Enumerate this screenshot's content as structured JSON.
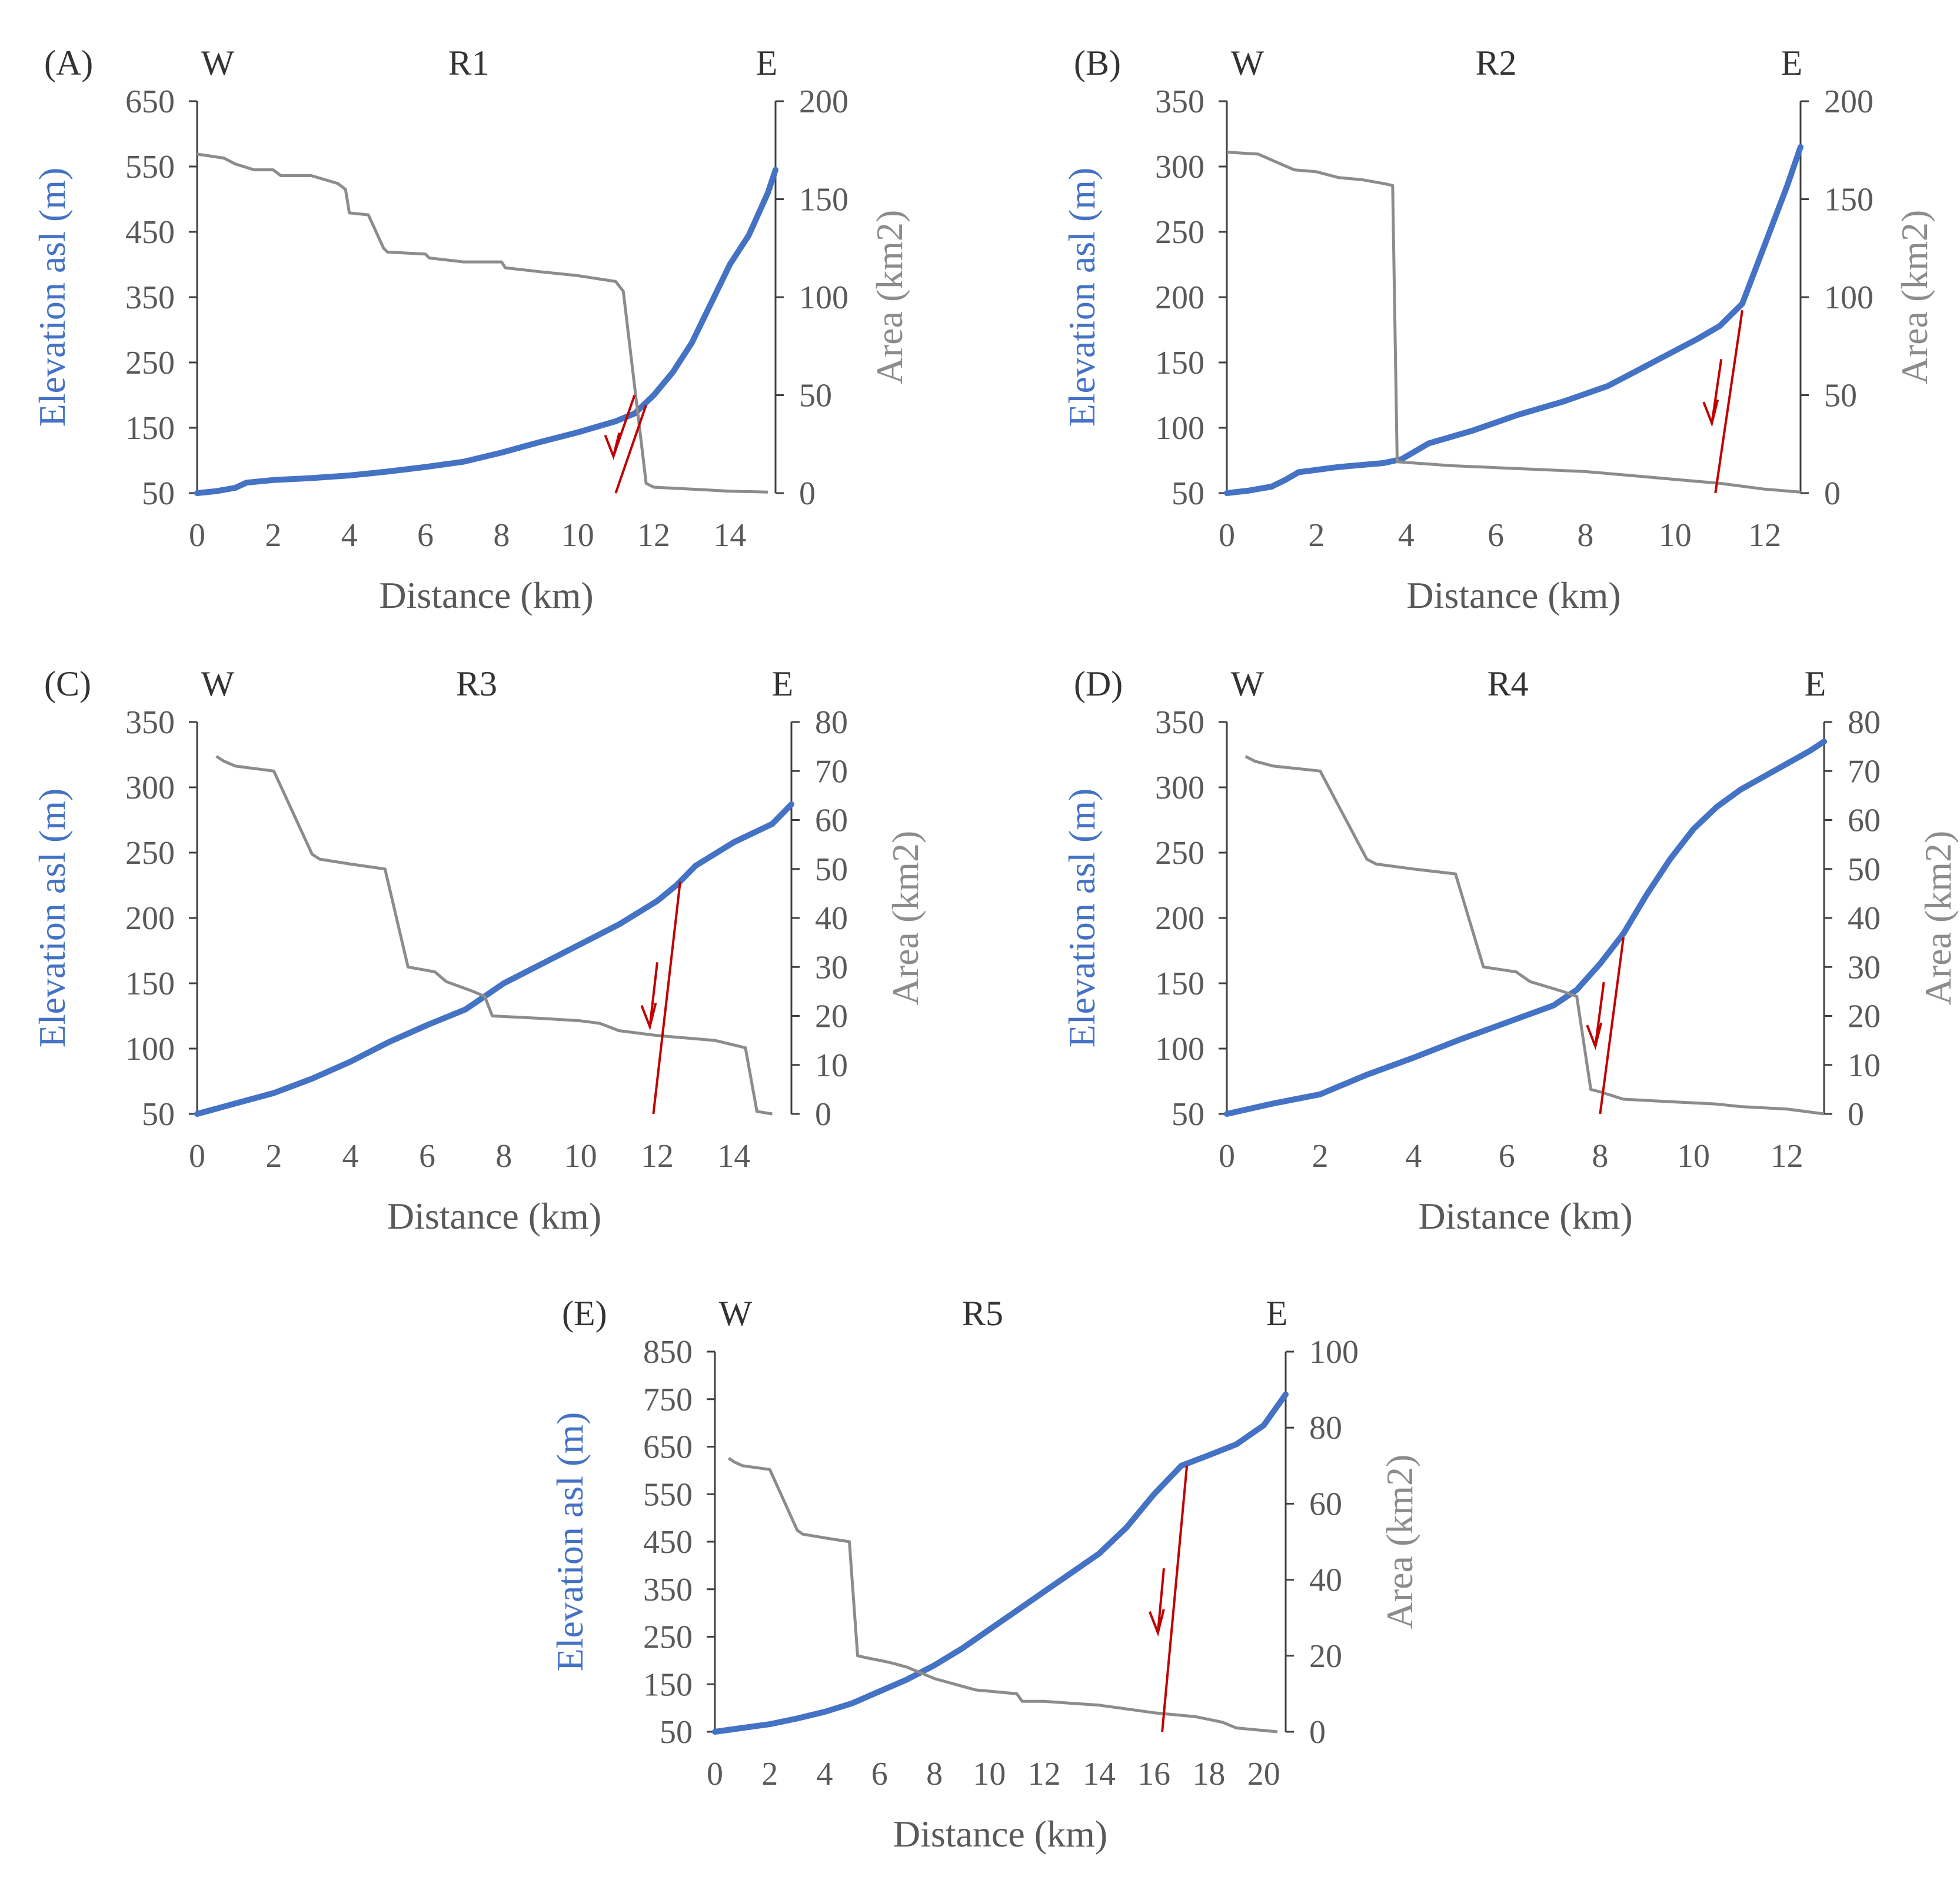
{
  "colors": {
    "elevation": "#4472C4",
    "area": "#8C8C8C",
    "fault": "#C00000",
    "axis": "#404040",
    "text": "#333333",
    "tick_text": "#595959"
  },
  "chart_data": [
    {
      "type": "line",
      "panel": "(A)",
      "title": "R1",
      "west_label": "W",
      "east_label": "E",
      "xlabel": "Distance (km)",
      "ylabel": "Elevation asl (m)",
      "y2label": "Area (km2)",
      "xlim": [
        0,
        15.2
      ],
      "ylim": [
        50,
        650
      ],
      "y2lim": [
        0,
        200
      ],
      "xticks": [
        0,
        2,
        4,
        6,
        8,
        10,
        12,
        14
      ],
      "yticks": [
        50,
        150,
        250,
        350,
        450,
        550,
        650
      ],
      "y2ticks": [
        0,
        50,
        100,
        150,
        200
      ],
      "series": [
        {
          "name": "Elevation asl (m)",
          "axis": "left",
          "x": [
            0,
            0.5,
            1.0,
            1.3,
            2,
            3,
            4,
            5,
            6,
            7,
            8,
            9,
            10,
            11,
            11.5,
            12,
            12.5,
            13,
            13.5,
            14,
            14.5,
            15,
            15.2
          ],
          "y": [
            50,
            53,
            58,
            66,
            70,
            73,
            77,
            83,
            90,
            98,
            112,
            128,
            143,
            160,
            172,
            200,
            235,
            280,
            340,
            400,
            445,
            510,
            545
          ]
        },
        {
          "name": "Area (km2)",
          "axis": "right",
          "x": [
            0,
            0.7,
            1.0,
            1.5,
            2.0,
            2.2,
            3.0,
            3.7,
            3.9,
            4.0,
            4.5,
            4.9,
            5.0,
            6.0,
            6.1,
            7.0,
            8.0,
            8.1,
            9.0,
            10.0,
            11.0,
            11.2,
            11.8,
            12.0,
            13.0,
            14.0,
            15.0
          ],
          "y": [
            173,
            171,
            168,
            165,
            165,
            162,
            162,
            158,
            155,
            143,
            142,
            125,
            123,
            122,
            120,
            118,
            118,
            115,
            113,
            111,
            108,
            103,
            5,
            3,
            2,
            1,
            0.5
          ]
        }
      ],
      "fault": {
        "x_start": 11.0,
        "x_end": 11.8,
        "elev_at_top": 185
      }
    },
    {
      "type": "line",
      "panel": "(B)",
      "title": "R2",
      "west_label": "W",
      "east_label": "E",
      "xlabel": "Distance (km)",
      "ylabel": "Elevation asl (m)",
      "y2label": "Area (km2)",
      "xlim": [
        0,
        12.8
      ],
      "ylim": [
        50,
        350
      ],
      "y2lim": [
        0,
        200
      ],
      "xticks": [
        0,
        2,
        4,
        6,
        8,
        10,
        12
      ],
      "yticks": [
        50,
        100,
        150,
        200,
        250,
        300,
        350
      ],
      "y2ticks": [
        0,
        50,
        100,
        150,
        200
      ],
      "series": [
        {
          "name": "Elevation asl (m)",
          "axis": "left",
          "x": [
            0,
            0.5,
            1.0,
            1.3,
            1.6,
            2.5,
            3.5,
            3.9,
            4.5,
            5.5,
            6.5,
            7.5,
            8.5,
            9.5,
            10.5,
            11.0,
            11.5,
            12.0,
            12.5,
            12.8
          ],
          "y": [
            50,
            52,
            55,
            60,
            66,
            70,
            73,
            76,
            88,
            98,
            110,
            120,
            132,
            150,
            168,
            178,
            195,
            240,
            285,
            315
          ]
        },
        {
          "name": "Area (km2)",
          "axis": "right",
          "x": [
            0,
            0.7,
            1.0,
            1.5,
            2.0,
            2.5,
            3.0,
            3.5,
            3.7,
            3.8,
            5.0,
            6.0,
            7.0,
            8.0,
            9.0,
            10.0,
            11.0,
            12.0,
            12.8
          ],
          "y": [
            174,
            173,
            170,
            165,
            164,
            161,
            160,
            158,
            157,
            16,
            14,
            13,
            12,
            11,
            9,
            7,
            5,
            2,
            0.5
          ]
        }
      ],
      "fault": {
        "x_start": 10.9,
        "x_end": 11.5,
        "elev_at_top": 190
      }
    },
    {
      "type": "line",
      "panel": "(C)",
      "title": "R3",
      "west_label": "W",
      "east_label": "E",
      "xlabel": "Distance (km)",
      "ylabel": "Elevation asl (m)",
      "y2label": "Area (km2)",
      "xlim": [
        0,
        15.5
      ],
      "ylim": [
        50,
        350
      ],
      "y2lim": [
        0,
        80
      ],
      "xticks": [
        0,
        2,
        4,
        6,
        8,
        10,
        12,
        14
      ],
      "yticks": [
        50,
        100,
        150,
        200,
        250,
        300,
        350
      ],
      "y2ticks": [
        0,
        10,
        20,
        30,
        40,
        50,
        60,
        70,
        80
      ],
      "series": [
        {
          "name": "Elevation asl (m)",
          "axis": "left",
          "x": [
            0,
            1,
            2,
            3,
            4,
            5,
            6,
            7,
            7.5,
            8,
            9,
            10,
            11,
            12,
            12.5,
            13,
            14,
            15,
            15.5
          ],
          "y": [
            50,
            58,
            66,
            77,
            90,
            105,
            118,
            130,
            140,
            150,
            165,
            180,
            195,
            213,
            225,
            240,
            258,
            272,
            287
          ]
        },
        {
          "name": "Area (km2)",
          "axis": "right",
          "x": [
            0.5,
            0.7,
            1.0,
            2.0,
            3.0,
            3.2,
            4.0,
            4.9,
            5.5,
            6.2,
            6.5,
            7.2,
            7.5,
            7.7,
            9.0,
            10.0,
            10.5,
            11.0,
            12.0,
            13.5,
            14.3,
            14.6,
            15.0
          ],
          "y": [
            73,
            72,
            71,
            70,
            53,
            52,
            51,
            50,
            30,
            29,
            27,
            25,
            24,
            20,
            19.5,
            19,
            18.5,
            17,
            16,
            15,
            13.5,
            0.5,
            0
          ]
        }
      ],
      "fault": {
        "x_start": 11.9,
        "x_end": 12.6,
        "elev_at_top": 228
      }
    },
    {
      "type": "line",
      "panel": "(D)",
      "title": "R4",
      "west_label": "W",
      "east_label": "E",
      "xlabel": "Distance (km)",
      "ylabel": "Elevation asl (m)",
      "y2label": "Area (km2)",
      "xlim": [
        0,
        12.8
      ],
      "ylim": [
        50,
        350
      ],
      "y2lim": [
        0,
        80
      ],
      "xticks": [
        0,
        2,
        4,
        6,
        8,
        10,
        12
      ],
      "yticks": [
        50,
        100,
        150,
        200,
        250,
        300,
        350
      ],
      "y2ticks": [
        0,
        10,
        20,
        30,
        40,
        50,
        60,
        70,
        80
      ],
      "series": [
        {
          "name": "Elevation asl (m)",
          "axis": "left",
          "x": [
            0,
            1,
            2,
            3,
            4,
            5,
            6,
            7,
            7.5,
            8,
            8.5,
            9,
            9.5,
            10,
            10.5,
            11,
            11.5,
            12,
            12.5,
            12.8
          ],
          "y": [
            50,
            58,
            65,
            80,
            93,
            107,
            120,
            133,
            145,
            165,
            188,
            218,
            245,
            268,
            285,
            298,
            308,
            318,
            328,
            335
          ]
        },
        {
          "name": "Area (km2)",
          "axis": "right",
          "x": [
            0.4,
            0.6,
            1.0,
            2.0,
            3.0,
            3.2,
            4.0,
            4.9,
            5.5,
            6.2,
            6.5,
            7.2,
            7.5,
            7.8,
            8.0,
            8.5,
            9.5,
            10.5,
            11.0,
            12.0,
            12.8
          ],
          "y": [
            73,
            72,
            71,
            70,
            52,
            51,
            50,
            49,
            30,
            29,
            27,
            25,
            24,
            5,
            4.5,
            3,
            2.5,
            2,
            1.5,
            1,
            0
          ]
        }
      ],
      "fault": {
        "x_start": 8.0,
        "x_end": 8.5,
        "elev_at_top": 185
      }
    },
    {
      "type": "line",
      "panel": "(E)",
      "title": "R5",
      "west_label": "W",
      "east_label": "E",
      "xlabel": "Distance (km)",
      "ylabel": "Elevation asl (m)",
      "y2label": "Area (km2)",
      "xlim": [
        0,
        20.8
      ],
      "ylim": [
        50,
        850
      ],
      "y2lim": [
        0,
        100
      ],
      "xticks": [
        0,
        2,
        4,
        6,
        8,
        10,
        12,
        14,
        16,
        18,
        20
      ],
      "yticks": [
        50,
        150,
        250,
        350,
        450,
        550,
        650,
        750,
        850
      ],
      "y2ticks": [
        0,
        20,
        40,
        60,
        80,
        100
      ],
      "series": [
        {
          "name": "Elevation asl (m)",
          "axis": "left",
          "x": [
            0,
            1,
            2,
            3,
            4,
            5,
            6,
            7,
            8,
            9,
            10,
            11,
            12,
            13,
            14,
            15,
            16,
            17,
            18,
            19,
            20,
            20.8
          ],
          "y": [
            50,
            58,
            66,
            78,
            92,
            110,
            135,
            160,
            190,
            225,
            265,
            305,
            345,
            385,
            425,
            480,
            550,
            610,
            632,
            655,
            695,
            760
          ]
        },
        {
          "name": "Area (km2)",
          "axis": "right",
          "x": [
            0.5,
            0.7,
            1.0,
            2.0,
            3.0,
            3.2,
            4.0,
            4.9,
            5.2,
            5.5,
            6.2,
            6.5,
            7.0,
            8.0,
            9.5,
            11.0,
            11.2,
            12.0,
            13.0,
            14.0,
            15.0,
            16.0,
            17.5,
            18.5,
            19.0,
            20.5
          ],
          "y": [
            72,
            71,
            70,
            69,
            53,
            52,
            51,
            50,
            20,
            19.5,
            18.5,
            18,
            17,
            14,
            11,
            10,
            8,
            8,
            7.5,
            7,
            6,
            5,
            4,
            2.5,
            1,
            0
          ]
        }
      ],
      "fault": {
        "x_start": 16.3,
        "x_end": 17.2,
        "elev_at_top": 610
      }
    }
  ]
}
